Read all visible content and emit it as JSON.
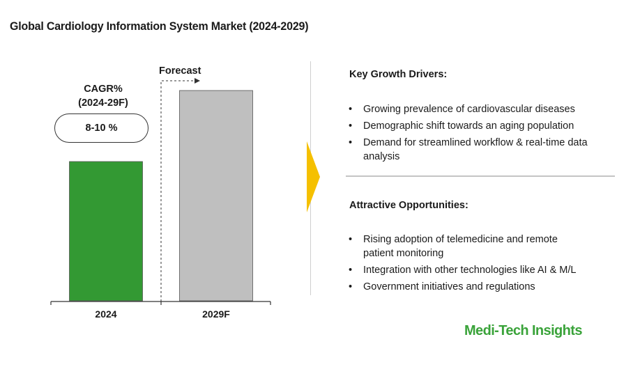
{
  "title": "Global Cardiology Information System Market (2024-2029)",
  "cagr": {
    "label_line1": "CAGR%",
    "label_line2": "(2024-29F)",
    "value": "8-10 %"
  },
  "forecast_label": "Forecast",
  "drivers": {
    "title": "Key Growth Drivers:",
    "items": [
      "Growing prevalence of cardiovascular diseases",
      "Demographic shift towards an aging population",
      "Demand for streamlined workflow & real-time data analysis"
    ]
  },
  "opportunities": {
    "title": "Attractive Opportunities:",
    "items": [
      "Rising adoption of telemedicine and remote patient monitoring",
      "Integration with other technologies like AI & M/L",
      "Government initiatives and regulations"
    ]
  },
  "logo": "Medi-Tech Insights",
  "chart_data": {
    "type": "bar",
    "categories": [
      "2024",
      "2029F"
    ],
    "values": [
      1.0,
      1.51
    ],
    "colors": [
      "#339933",
      "#bfbfbf"
    ],
    "ylim": [
      0,
      1.6
    ],
    "grid": false,
    "legend": "none"
  },
  "colors": {
    "accent_arrow": "#f5c000",
    "logo": "#3aa33a"
  }
}
